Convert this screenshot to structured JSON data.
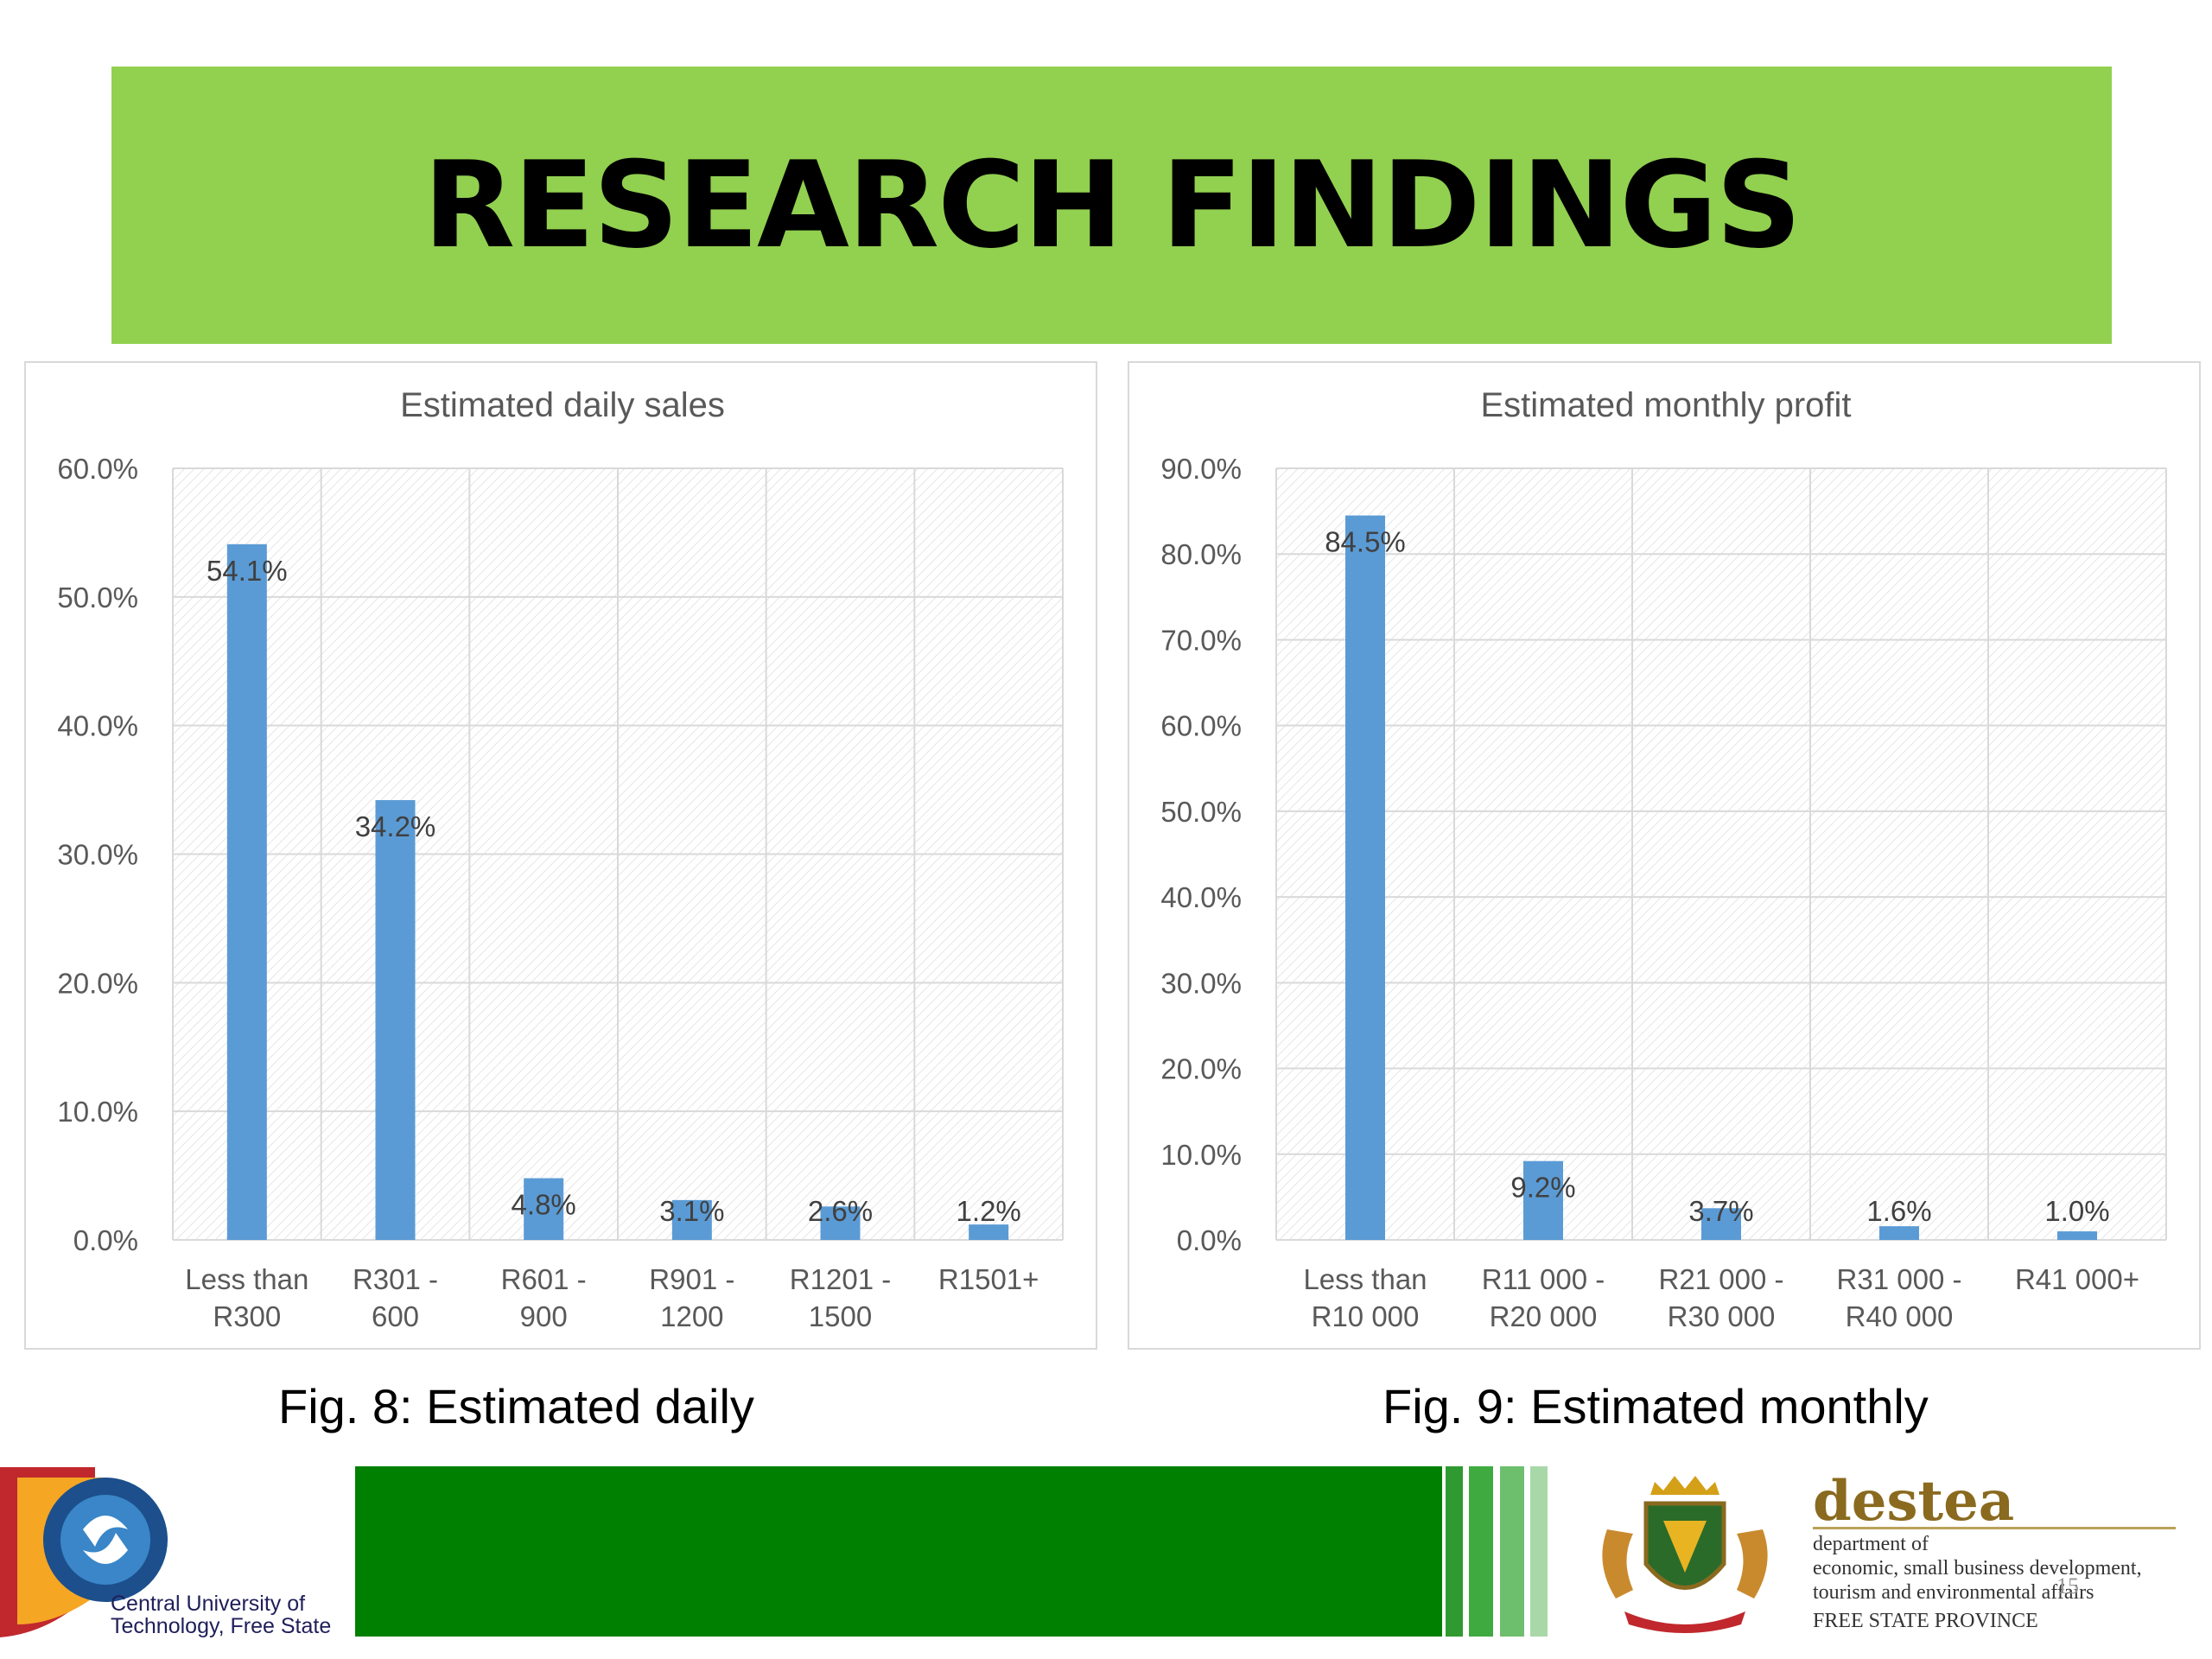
{
  "slide": {
    "title": "RESEARCH FINDINGS",
    "colors": {
      "banner": "#92d050",
      "bar": "#5b9bd5",
      "footer": "#008000"
    }
  },
  "chart_data": [
    {
      "type": "bar",
      "title": "Estimated daily sales",
      "categories": [
        [
          "Less than",
          "R300"
        ],
        [
          "R301 -",
          "600"
        ],
        [
          "R601 -",
          "900"
        ],
        [
          "R901 -",
          "1200"
        ],
        [
          "R1201 -",
          "1500"
        ],
        [
          "R1501+"
        ]
      ],
      "values": [
        54.1,
        34.2,
        4.8,
        3.1,
        2.6,
        1.2
      ],
      "value_labels": [
        "54.1%",
        "34.2%",
        "4.8%",
        "3.1%",
        "2.6%",
        "1.2%"
      ],
      "yticks": [
        "0.0%",
        "10.0%",
        "20.0%",
        "30.0%",
        "40.0%",
        "50.0%",
        "60.0%"
      ],
      "ylim": [
        0,
        60
      ],
      "grid": true,
      "legend": "none"
    },
    {
      "type": "bar",
      "title": "Estimated monthly profit",
      "categories": [
        [
          "Less than",
          "R10 000"
        ],
        [
          "R11 000 -",
          "R20 000"
        ],
        [
          "R21 000 -",
          "R30 000"
        ],
        [
          "R31 000 -",
          "R40 000"
        ],
        [
          "R41 000+"
        ]
      ],
      "values": [
        84.5,
        9.2,
        3.7,
        1.6,
        1.0
      ],
      "value_labels": [
        "84.5%",
        "9.2%",
        "3.7%",
        "1.6%",
        "1.0%"
      ],
      "yticks": [
        "0.0%",
        "10.0%",
        "20.0%",
        "30.0%",
        "40.0%",
        "50.0%",
        "60.0%",
        "70.0%",
        "80.0%",
        "90.0%"
      ],
      "ylim": [
        0,
        90
      ],
      "grid": true,
      "legend": "none"
    }
  ],
  "captions": {
    "fig8": "Fig. 8: Estimated daily",
    "fig9": "Fig. 9: Estimated monthly"
  },
  "footer": {
    "cut_line1": "Central University of",
    "cut_line2": "Technology, Free State",
    "destea_name": "destea",
    "destea_line1": "department of",
    "destea_line2": "economic, small business development,",
    "destea_line3": "tourism and environmental affairs",
    "destea_line4": "FREE STATE PROVINCE",
    "page_number": "15"
  }
}
